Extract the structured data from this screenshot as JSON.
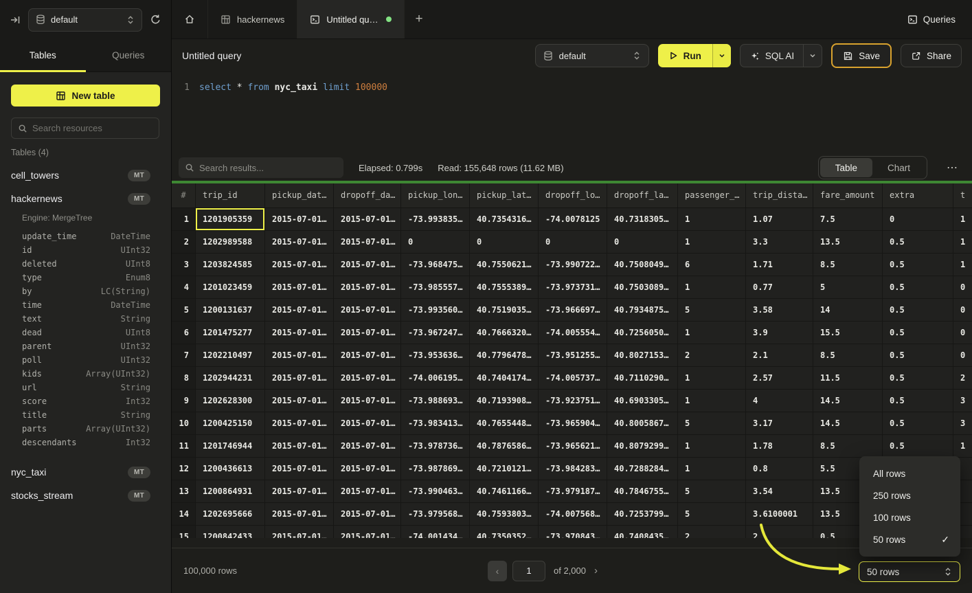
{
  "sidebar": {
    "topbar": {
      "database": "default"
    },
    "tabs": {
      "tables": "Tables",
      "queries": "Queries"
    },
    "new_table_label": "New table",
    "search_placeholder": "Search resources",
    "section_label": "Tables (4)",
    "tables": [
      {
        "name": "cell_towers",
        "badge": "MT"
      },
      {
        "name": "hackernews",
        "badge": "MT",
        "engine": "Engine: MergeTree",
        "columns": [
          [
            "update_time",
            "DateTime"
          ],
          [
            "id",
            "UInt32"
          ],
          [
            "deleted",
            "UInt8"
          ],
          [
            "type",
            "Enum8"
          ],
          [
            "by",
            "LC(String)"
          ],
          [
            "time",
            "DateTime"
          ],
          [
            "text",
            "String"
          ],
          [
            "dead",
            "UInt8"
          ],
          [
            "parent",
            "UInt32"
          ],
          [
            "poll",
            "UInt32"
          ],
          [
            "kids",
            "Array(UInt32)"
          ],
          [
            "url",
            "String"
          ],
          [
            "score",
            "Int32"
          ],
          [
            "title",
            "String"
          ],
          [
            "parts",
            "Array(UInt32)"
          ],
          [
            "descendants",
            "Int32"
          ]
        ]
      },
      {
        "name": "nyc_taxi",
        "badge": "MT"
      },
      {
        "name": "stocks_stream",
        "badge": "MT"
      }
    ]
  },
  "tabstrip": {
    "table_tab_label": "hackernews",
    "query_tab_label": "Untitled qu…",
    "new_tab_label": "+",
    "queries_button_label": "Queries"
  },
  "query_toolbar": {
    "title": "Untitled query",
    "database": "default",
    "run_label": "Run",
    "sql_ai_label": "SQL AI",
    "save_label": "Save",
    "share_label": "Share"
  },
  "editor": {
    "line_number": "1",
    "tokens": [
      {
        "text": "select",
        "type": "kw"
      },
      {
        "text": "*",
        "type": "op"
      },
      {
        "text": "from",
        "type": "kw"
      },
      {
        "text": "nyc_taxi",
        "type": "ident"
      },
      {
        "text": "limit",
        "type": "kw"
      },
      {
        "text": "100000",
        "type": "num"
      }
    ]
  },
  "results_toolbar": {
    "search_placeholder": "Search results...",
    "elapsed": "Elapsed: 0.799s",
    "read": "Read: 155,648 rows (11.62 MB)",
    "table_label": "Table",
    "chart_label": "Chart",
    "more_label": "⋯"
  },
  "grid": {
    "columns": [
      "#",
      "trip_id",
      "pickup_dat…",
      "dropoff_da…",
      "pickup_lon…",
      "pickup_lat…",
      "dropoff_lo…",
      "dropoff_la…",
      "passenger_…",
      "trip_dista…",
      "fare_amount",
      "extra",
      "t"
    ],
    "selected_cell": {
      "row_index": 0,
      "col_index": 1
    },
    "rows": [
      [
        "1201905359",
        "2015-07-01…",
        "2015-07-01…",
        "-73.993835…",
        "40.7354316…",
        "-74.0078125",
        "40.7318305…",
        "1",
        "1.07",
        "7.5",
        "0",
        "1"
      ],
      [
        "1202989588",
        "2015-07-01…",
        "2015-07-01…",
        "0",
        "0",
        "0",
        "0",
        "1",
        "3.3",
        "13.5",
        "0.5",
        "1"
      ],
      [
        "1203824585",
        "2015-07-01…",
        "2015-07-01…",
        "-73.968475…",
        "40.7550621…",
        "-73.990722…",
        "40.7508049…",
        "6",
        "1.71",
        "8.5",
        "0.5",
        "1"
      ],
      [
        "1201023459",
        "2015-07-01…",
        "2015-07-01…",
        "-73.985557…",
        "40.7555389…",
        "-73.973731…",
        "40.7503089…",
        "1",
        "0.77",
        "5",
        "0.5",
        "0"
      ],
      [
        "1200131637",
        "2015-07-01…",
        "2015-07-01…",
        "-73.993560…",
        "40.7519035…",
        "-73.966697…",
        "40.7934875…",
        "5",
        "3.58",
        "14",
        "0.5",
        "0"
      ],
      [
        "1201475277",
        "2015-07-01…",
        "2015-07-01…",
        "-73.967247…",
        "40.7666320…",
        "-74.005554…",
        "40.7256050…",
        "1",
        "3.9",
        "15.5",
        "0.5",
        "0"
      ],
      [
        "1202210497",
        "2015-07-01…",
        "2015-07-01…",
        "-73.953636…",
        "40.7796478…",
        "-73.951255…",
        "40.8027153…",
        "2",
        "2.1",
        "8.5",
        "0.5",
        "0"
      ],
      [
        "1202944231",
        "2015-07-01…",
        "2015-07-01…",
        "-74.006195…",
        "40.7404174…",
        "-74.005737…",
        "40.7110290…",
        "1",
        "2.57",
        "11.5",
        "0.5",
        "2"
      ],
      [
        "1202628300",
        "2015-07-01…",
        "2015-07-01…",
        "-73.988693…",
        "40.7193908…",
        "-73.923751…",
        "40.6903305…",
        "1",
        "4",
        "14.5",
        "0.5",
        "3"
      ],
      [
        "1200425150",
        "2015-07-01…",
        "2015-07-01…",
        "-73.983413…",
        "40.7655448…",
        "-73.965904…",
        "40.8005867…",
        "5",
        "3.17",
        "14.5",
        "0.5",
        "3"
      ],
      [
        "1201746944",
        "2015-07-01…",
        "2015-07-01…",
        "-73.978736…",
        "40.7876586…",
        "-73.965621…",
        "40.8079299…",
        "1",
        "1.78",
        "8.5",
        "0.5",
        "1"
      ],
      [
        "1200436613",
        "2015-07-01…",
        "2015-07-01…",
        "-73.987869…",
        "40.7210121…",
        "-73.984283…",
        "40.7288284…",
        "1",
        "0.8",
        "5.5",
        "",
        ""
      ],
      [
        "1200864931",
        "2015-07-01…",
        "2015-07-01…",
        "-73.990463…",
        "40.7461166…",
        "-73.979187…",
        "40.7846755…",
        "5",
        "3.54",
        "13.5",
        "",
        ""
      ],
      [
        "1202695666",
        "2015-07-01…",
        "2015-07-01…",
        "-73.979568…",
        "40.7593803…",
        "-74.007568…",
        "40.7253799…",
        "5",
        "3.6100001",
        "13.5",
        "",
        ""
      ],
      [
        "1200842433",
        "2015-07-01…",
        "2015-07-01…",
        "-74.001434…",
        "40.7350352…",
        "-73.970843…",
        "40.7408435…",
        "2",
        "2",
        "0.5",
        "",
        ""
      ]
    ]
  },
  "footer": {
    "total_label": "100,000 rows",
    "prev_label": "‹",
    "page": "1",
    "of_label": "of 2,000",
    "next_label": "›",
    "page_size_label": "50 rows"
  },
  "rows_menu": {
    "items": [
      {
        "label": "All rows",
        "checked": false
      },
      {
        "label": "250 rows",
        "checked": false
      },
      {
        "label": "100 rows",
        "checked": false
      },
      {
        "label": "50 rows",
        "checked": true
      }
    ],
    "check_glyph": "✓"
  },
  "colors": {
    "accent_yellow": "#eef049",
    "save_border_orange": "#d9a22e",
    "success_green": "#3e8733",
    "tab_dirty_dot_green": "#83e283"
  }
}
